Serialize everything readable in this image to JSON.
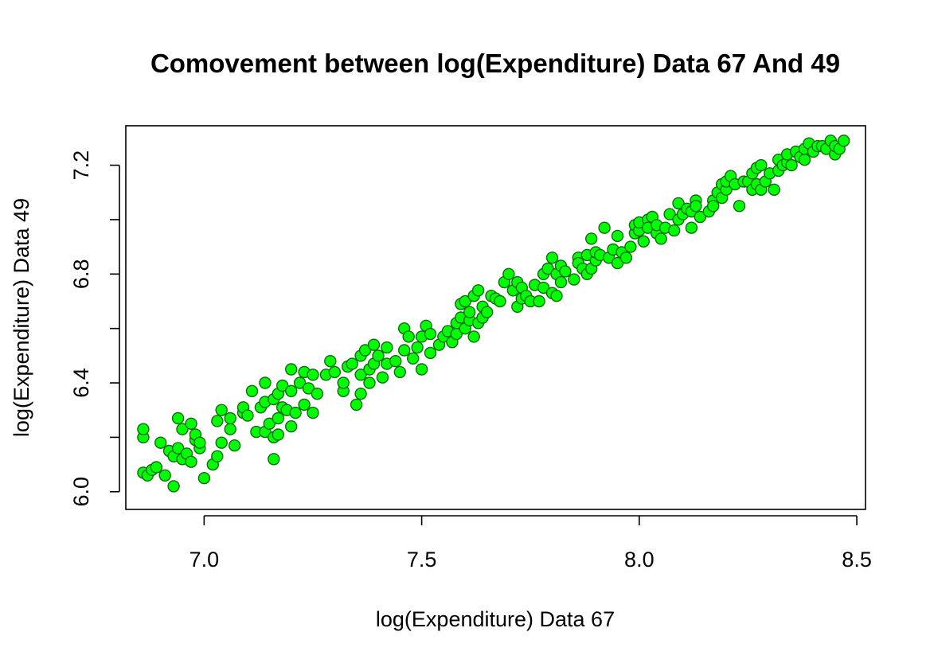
{
  "chart_data": {
    "type": "scatter",
    "title": "Comovement between log(Expenditure) Data 67 And 49",
    "xlabel": "log(Expenditure) Data 67",
    "ylabel": "log(Expenditure) Data 49",
    "xlim": [
      6.82,
      8.52
    ],
    "ylim": [
      5.935,
      7.345
    ],
    "xticks": [
      7.0,
      7.5,
      8.0,
      8.5
    ],
    "xtick_labels": [
      "7.0",
      "7.5",
      "8.0",
      "8.5"
    ],
    "yticks": [
      6.0,
      6.2,
      6.4,
      6.6,
      6.8,
      7.0,
      7.2
    ],
    "ytick_labels": [
      "6.0",
      "",
      "6.4",
      "",
      "6.8",
      "",
      "7.2"
    ],
    "grid": false,
    "legend": "none",
    "marker_fill": "#00ff00",
    "marker_stroke": "#0d6b0d",
    "points": [
      [
        6.86,
        6.07
      ],
      [
        6.87,
        6.06
      ],
      [
        6.88,
        6.08
      ],
      [
        6.86,
        6.2
      ],
      [
        6.86,
        6.23
      ],
      [
        6.89,
        6.09
      ],
      [
        6.9,
        6.18
      ],
      [
        6.91,
        6.06
      ],
      [
        6.92,
        6.15
      ],
      [
        6.93,
        6.02
      ],
      [
        6.93,
        6.13
      ],
      [
        6.94,
        6.16
      ],
      [
        6.94,
        6.27
      ],
      [
        6.95,
        6.12
      ],
      [
        6.95,
        6.23
      ],
      [
        6.96,
        6.14
      ],
      [
        6.97,
        6.11
      ],
      [
        6.97,
        6.25
      ],
      [
        6.98,
        6.19
      ],
      [
        6.98,
        6.21
      ],
      [
        6.99,
        6.16
      ],
      [
        6.99,
        6.18
      ],
      [
        7.0,
        6.05
      ],
      [
        7.02,
        6.1
      ],
      [
        7.03,
        6.13
      ],
      [
        7.03,
        6.26
      ],
      [
        7.04,
        6.18
      ],
      [
        7.04,
        6.3
      ],
      [
        7.06,
        6.23
      ],
      [
        7.06,
        6.27
      ],
      [
        7.07,
        6.17
      ],
      [
        7.09,
        6.29
      ],
      [
        7.09,
        6.31
      ],
      [
        7.1,
        6.28
      ],
      [
        7.11,
        6.37
      ],
      [
        7.12,
        6.22
      ],
      [
        7.13,
        6.31
      ],
      [
        7.14,
        6.22
      ],
      [
        7.14,
        6.33
      ],
      [
        7.14,
        6.4
      ],
      [
        7.15,
        6.25
      ],
      [
        7.16,
        6.34
      ],
      [
        7.16,
        6.2
      ],
      [
        7.17,
        6.36
      ],
      [
        7.17,
        6.21
      ],
      [
        7.17,
        6.27
      ],
      [
        7.18,
        6.31
      ],
      [
        7.16,
        6.12
      ],
      [
        7.18,
        6.39
      ],
      [
        7.19,
        6.3
      ],
      [
        7.2,
        6.24
      ],
      [
        7.2,
        6.37
      ],
      [
        7.2,
        6.45
      ],
      [
        7.21,
        6.29
      ],
      [
        7.22,
        6.4
      ],
      [
        7.23,
        6.32
      ],
      [
        7.23,
        6.44
      ],
      [
        7.24,
        6.38
      ],
      [
        7.25,
        6.29
      ],
      [
        7.25,
        6.43
      ],
      [
        7.26,
        6.36
      ],
      [
        7.28,
        6.43
      ],
      [
        7.29,
        6.48
      ],
      [
        7.3,
        6.44
      ],
      [
        7.32,
        6.37
      ],
      [
        7.32,
        6.4
      ],
      [
        7.33,
        6.46
      ],
      [
        7.34,
        6.47
      ],
      [
        7.35,
        6.32
      ],
      [
        7.36,
        6.36
      ],
      [
        7.36,
        6.43
      ],
      [
        7.36,
        6.5
      ],
      [
        7.37,
        6.52
      ],
      [
        7.38,
        6.4
      ],
      [
        7.38,
        6.45
      ],
      [
        7.39,
        6.47
      ],
      [
        7.39,
        6.54
      ],
      [
        7.4,
        6.5
      ],
      [
        7.41,
        6.42
      ],
      [
        7.42,
        6.47
      ],
      [
        7.42,
        6.53
      ],
      [
        7.44,
        6.48
      ],
      [
        7.45,
        6.44
      ],
      [
        7.46,
        6.52
      ],
      [
        7.46,
        6.6
      ],
      [
        7.47,
        6.57
      ],
      [
        7.48,
        6.49
      ],
      [
        7.49,
        6.53
      ],
      [
        7.5,
        6.45
      ],
      [
        7.5,
        6.57
      ],
      [
        7.51,
        6.61
      ],
      [
        7.52,
        6.58
      ],
      [
        7.52,
        6.51
      ],
      [
        7.54,
        6.54
      ],
      [
        7.55,
        6.57
      ],
      [
        7.56,
        6.59
      ],
      [
        7.57,
        6.55
      ],
      [
        7.58,
        6.58
      ],
      [
        7.58,
        6.62
      ],
      [
        7.59,
        6.64
      ],
      [
        7.59,
        6.69
      ],
      [
        7.6,
        6.6
      ],
      [
        7.6,
        6.7
      ],
      [
        7.61,
        6.63
      ],
      [
        7.61,
        6.66
      ],
      [
        7.62,
        6.72
      ],
      [
        7.62,
        6.57
      ],
      [
        7.63,
        6.62
      ],
      [
        7.63,
        6.74
      ],
      [
        7.64,
        6.64
      ],
      [
        7.64,
        6.68
      ],
      [
        7.65,
        6.66
      ],
      [
        7.66,
        6.72
      ],
      [
        7.67,
        6.71
      ],
      [
        7.68,
        6.7
      ],
      [
        7.69,
        6.77
      ],
      [
        7.7,
        6.8
      ],
      [
        7.71,
        6.74
      ],
      [
        7.72,
        6.68
      ],
      [
        7.72,
        6.77
      ],
      [
        7.73,
        6.71
      ],
      [
        7.73,
        6.75
      ],
      [
        7.74,
        6.72
      ],
      [
        7.75,
        6.7
      ],
      [
        7.76,
        6.76
      ],
      [
        7.77,
        6.7
      ],
      [
        7.78,
        6.75
      ],
      [
        7.78,
        6.8
      ],
      [
        7.79,
        6.82
      ],
      [
        7.8,
        6.73
      ],
      [
        7.8,
        6.86
      ],
      [
        7.81,
        6.72
      ],
      [
        7.81,
        6.8
      ],
      [
        7.82,
        6.77
      ],
      [
        7.82,
        6.83
      ],
      [
        7.83,
        6.81
      ],
      [
        7.85,
        6.78
      ],
      [
        7.86,
        6.86
      ],
      [
        7.86,
        6.84
      ],
      [
        7.87,
        6.82
      ],
      [
        7.88,
        6.8
      ],
      [
        7.88,
        6.87
      ],
      [
        7.89,
        6.93
      ],
      [
        7.89,
        6.82
      ],
      [
        7.9,
        6.85
      ],
      [
        7.9,
        6.88
      ],
      [
        7.91,
        6.87
      ],
      [
        7.92,
        6.97
      ],
      [
        7.93,
        6.86
      ],
      [
        7.94,
        6.89
      ],
      [
        7.95,
        6.84
      ],
      [
        7.95,
        6.94
      ],
      [
        7.96,
        6.88
      ],
      [
        7.97,
        6.86
      ],
      [
        7.98,
        6.9
      ],
      [
        7.99,
        6.95
      ],
      [
        7.99,
        6.98
      ],
      [
        8.0,
        6.96
      ],
      [
        8.0,
        6.99
      ],
      [
        8.01,
        6.92
      ],
      [
        8.02,
        7.0
      ],
      [
        8.02,
        6.97
      ],
      [
        8.03,
        7.01
      ],
      [
        8.04,
        6.95
      ],
      [
        8.04,
        6.98
      ],
      [
        8.05,
        6.93
      ],
      [
        8.06,
        6.97
      ],
      [
        8.07,
        7.02
      ],
      [
        8.08,
        6.96
      ],
      [
        8.09,
        7.0
      ],
      [
        8.09,
        7.06
      ],
      [
        8.1,
        7.02
      ],
      [
        8.11,
        7.04
      ],
      [
        8.12,
        6.97
      ],
      [
        8.12,
        7.03
      ],
      [
        8.13,
        7.07
      ],
      [
        8.13,
        7.05
      ],
      [
        8.14,
        7.01
      ],
      [
        8.16,
        7.03
      ],
      [
        8.17,
        7.07
      ],
      [
        8.17,
        7.05
      ],
      [
        8.18,
        7.1
      ],
      [
        8.19,
        7.13
      ],
      [
        8.19,
        7.08
      ],
      [
        8.2,
        7.11
      ],
      [
        8.2,
        7.14
      ],
      [
        8.21,
        7.16
      ],
      [
        8.22,
        7.13
      ],
      [
        8.23,
        7.05
      ],
      [
        8.24,
        7.14
      ],
      [
        8.25,
        7.14
      ],
      [
        8.26,
        7.11
      ],
      [
        8.26,
        7.17
      ],
      [
        8.27,
        7.13
      ],
      [
        8.27,
        7.19
      ],
      [
        8.28,
        7.11
      ],
      [
        8.28,
        7.2
      ],
      [
        8.29,
        7.14
      ],
      [
        8.3,
        7.17
      ],
      [
        8.31,
        7.11
      ],
      [
        8.32,
        7.18
      ],
      [
        8.32,
        7.22
      ],
      [
        8.33,
        7.2
      ],
      [
        8.34,
        7.21
      ],
      [
        8.34,
        7.24
      ],
      [
        8.35,
        7.2
      ],
      [
        8.36,
        7.25
      ],
      [
        8.37,
        7.23
      ],
      [
        8.38,
        7.22
      ],
      [
        8.38,
        7.26
      ],
      [
        8.39,
        7.28
      ],
      [
        8.4,
        7.25
      ],
      [
        8.41,
        7.27
      ],
      [
        8.42,
        7.27
      ],
      [
        8.43,
        7.26
      ],
      [
        8.44,
        7.29
      ],
      [
        8.45,
        7.24
      ],
      [
        8.45,
        7.27
      ],
      [
        8.46,
        7.26
      ],
      [
        8.47,
        7.29
      ]
    ]
  }
}
